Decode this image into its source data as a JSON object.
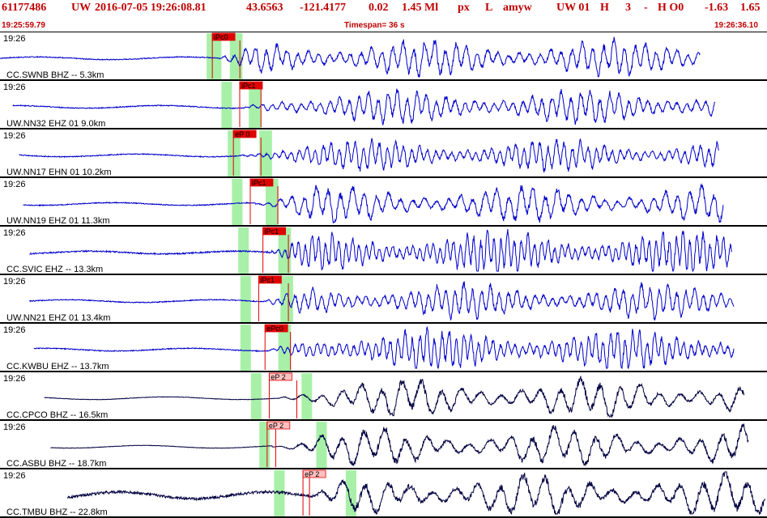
{
  "header": {
    "event_id": "61177486",
    "network": "UW",
    "datetime": "2016-07-05 19:26:08.81",
    "lat": "43.6563",
    "lon": "-121.4177",
    "depth": "0.02",
    "magnitude": "1.45 Ml",
    "type_code": "px",
    "location_code": "L",
    "author": "amyw",
    "extra_1": "UW 01",
    "extra_2": "H",
    "extra_3": "3",
    "extra_4": "-",
    "extra_5": "H O0",
    "extra_6": "-1.63",
    "extra_7": "1.65",
    "start_time": "19:25:59.79",
    "timespan_label": "Timespan=  36 s",
    "end_time": "19:26:36.10"
  },
  "colors": {
    "header_text": "#c00000",
    "trace_blue": "#0000cc",
    "trace_dark": "#000040",
    "pick_red": "#e00000",
    "pick_pink": "#ffc0c0",
    "window_green": "#a8f0a8"
  },
  "chart_data": {
    "type": "line",
    "x_unit": "seconds from 19:25:59.79",
    "xlim": [
      0,
      36.3
    ],
    "traces": [
      {
        "time_label": "19:26",
        "station_label": "CC.SWNB BHZ -- 5.3km",
        "pick_label": "iPc0",
        "pick_style": "red",
        "pick_time": 10.3,
        "s_time": 11.3,
        "wave_start": 0,
        "wave_end": 33.2,
        "window1": [
          9.8,
          10.5
        ],
        "window2": [
          10.9,
          11.5
        ],
        "color": "blue",
        "amp": 0.42,
        "freq": 3.2,
        "noise": 0.02
      },
      {
        "time_label": "19:26",
        "station_label": "UW.NN32 EHZ 01 9.0km",
        "pick_label": "iPc1",
        "pick_style": "red",
        "pick_time": 11.6,
        "s_time": 12.3,
        "wave_start": 0.6,
        "wave_end": 33.9,
        "window1": [
          10.5,
          11.0
        ],
        "window2": [
          11.8,
          12.4
        ],
        "color": "blue",
        "amp": 0.4,
        "freq": 3.5,
        "noise": 0.02
      },
      {
        "time_label": "19:26",
        "station_label": "UW.NN17 EHN 01 10.2km",
        "pick_label": "eP 0",
        "pick_style": "red",
        "pick_time": 11.3,
        "s_time": 12.3,
        "wave_start": 0.9,
        "wave_end": 34.1,
        "window1": [
          10.8,
          11.4
        ],
        "window2": [
          12.3,
          12.9
        ],
        "color": "blue",
        "amp": 0.36,
        "freq": 4.2,
        "noise": 0.02
      },
      {
        "time_label": "19:26",
        "station_label": "UW.NN19 EHZ 01 11.3km",
        "pick_label": "iPc1",
        "pick_style": "red",
        "pick_time": 12.1,
        "s_time": 13.1,
        "wave_start": 1.1,
        "wave_end": 34.3,
        "window1": [
          11.0,
          11.5
        ],
        "window2": [
          12.6,
          13.2
        ],
        "color": "blue",
        "amp": 0.42,
        "freq": 2.8,
        "noise": 0.02
      },
      {
        "time_label": "19:26",
        "station_label": "CC.SVIC EHZ -- 13.3km",
        "pick_label": "iPc1",
        "pick_style": "red",
        "pick_time": 12.7,
        "s_time": 13.6,
        "wave_start": 1.4,
        "wave_end": 34.7,
        "window1": [
          11.3,
          11.8
        ],
        "window2": [
          13.2,
          13.8
        ],
        "color": "blue",
        "amp": 0.5,
        "freq": 5.0,
        "noise": 0.03
      },
      {
        "time_label": "19:26",
        "station_label": "UW.NN21 EHZ 01 13.4km",
        "pick_label": "iPc1",
        "pick_style": "red",
        "pick_time": 12.5,
        "s_time": 13.6,
        "wave_start": 1.4,
        "wave_end": 34.8,
        "window1": [
          11.4,
          11.9
        ],
        "window2": [
          13.3,
          13.9
        ],
        "color": "blue",
        "amp": 0.4,
        "freq": 3.8,
        "noise": 0.02
      },
      {
        "time_label": "19:26",
        "station_label": "CC.KWBU EHZ -- 13.7km",
        "pick_label": "ePc0",
        "pick_style": "red",
        "pick_time": 12.8,
        "s_time": 13.7,
        "wave_start": 1.6,
        "wave_end": 34.8,
        "window1": [
          11.4,
          11.9
        ],
        "window2": [
          13.2,
          13.8
        ],
        "color": "blue",
        "amp": 0.48,
        "freq": 4.6,
        "noise": 0.02
      },
      {
        "time_label": "19:26",
        "station_label": "CC.CPCO BHZ -- 16.5km",
        "pick_label": "eP 2",
        "pick_style": "pink",
        "pick_time": 13.0,
        "s_time": 14.0,
        "wave_start": 2.1,
        "wave_end": 35.3,
        "window1": [
          11.9,
          12.4
        ],
        "window2": [
          14.3,
          14.8
        ],
        "color": "dark",
        "amp": 0.46,
        "freq": 1.7,
        "noise": 0.01
      },
      {
        "time_label": "19:26",
        "station_label": "CC.ASBU BHZ -- 18.7km",
        "pick_label": "eP 2",
        "pick_style": "pink",
        "pick_time": 12.9,
        "s_time": 13.0,
        "wave_start": 2.4,
        "wave_end": 35.5,
        "window1": [
          12.3,
          12.8
        ],
        "window2": [
          15.0,
          15.5
        ],
        "color": "dark",
        "amp": 0.46,
        "freq": 1.6,
        "noise": 0.01
      },
      {
        "time_label": "19:26",
        "station_label": "CC.TMBU BHZ -- 22.8km",
        "pick_label": "eP 2",
        "pick_style": "pink",
        "pick_time": 14.6,
        "s_time": 14.6,
        "wave_start": 3.2,
        "wave_end": 36.3,
        "window1": [
          13.0,
          13.5
        ],
        "window2": [
          16.4,
          16.9
        ],
        "color": "dark",
        "amp": 0.5,
        "freq": 1.5,
        "noise": 0.06
      }
    ]
  }
}
